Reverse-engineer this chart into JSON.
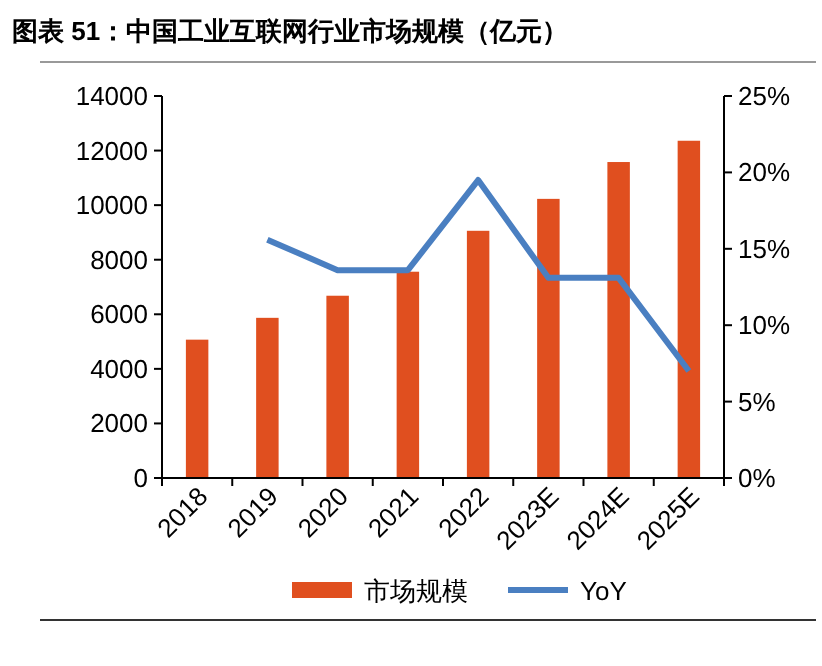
{
  "chart_data": {
    "type": "bar",
    "title": "图表 51：中国工业互联网行业市场规模（亿元）",
    "categories": [
      "2018",
      "2019",
      "2020",
      "2021",
      "2022",
      "2023E",
      "2024E",
      "2025E"
    ],
    "series": [
      {
        "name": "市场规模",
        "color": "#e04f1f",
        "values": [
          5070,
          5870,
          6680,
          7560,
          9060,
          10230,
          11580,
          12360
        ]
      },
      {
        "name": "YoY",
        "type": "line",
        "axis": "y2",
        "color": "#4a7fc1",
        "values": [
          null,
          15.6,
          13.6,
          13.6,
          19.5,
          13.1,
          13.1,
          7.0
        ]
      }
    ],
    "ylim": [
      0,
      14000
    ],
    "yticks": [
      0,
      2000,
      4000,
      6000,
      8000,
      10000,
      12000,
      14000
    ],
    "y2lim": [
      0,
      25
    ],
    "y2ticks": [
      {
        "value": 0,
        "label": "0%"
      },
      {
        "value": 5,
        "label": "5%"
      },
      {
        "value": 10,
        "label": "10%"
      },
      {
        "value": 15,
        "label": "15%"
      },
      {
        "value": 20,
        "label": "20%"
      },
      {
        "value": 25,
        "label": "25%"
      }
    ],
    "grid": false,
    "legend": "bottom",
    "marker": "none"
  }
}
